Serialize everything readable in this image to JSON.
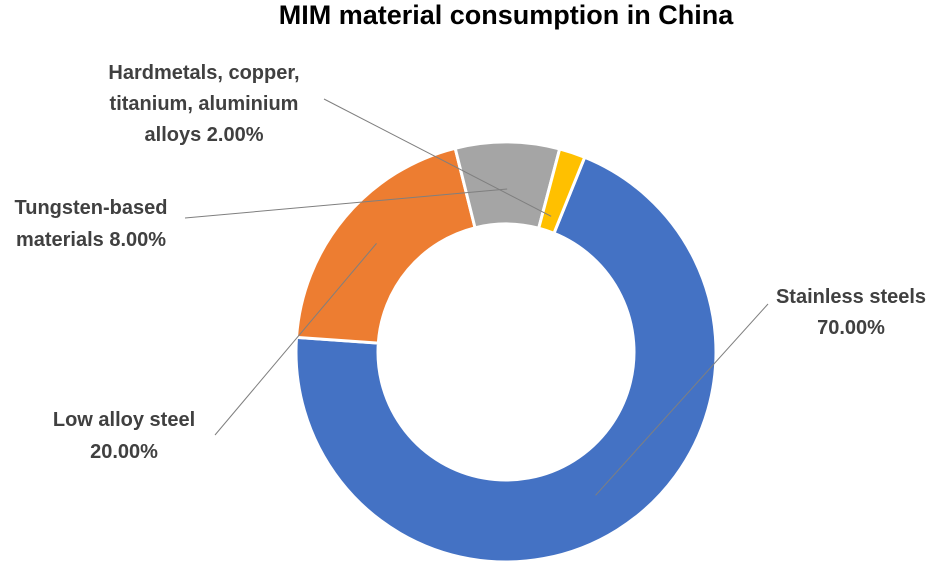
{
  "chart_data": {
    "type": "pie",
    "variant": "doughnut",
    "title": "MIM material consumption in China",
    "legend": "none",
    "slices": [
      {
        "label": "Stainless steels",
        "value": 70.0,
        "display": "70.00%",
        "color": "#4472C4"
      },
      {
        "label": "Low alloy steel",
        "value": 20.0,
        "display": "20.00%",
        "color": "#ED7D31"
      },
      {
        "label": "Tungsten-based materials",
        "value": 8.0,
        "display": "8.00%",
        "color": "#A5A5A5"
      },
      {
        "label": "Hardmetals, copper, titanium, aluminium alloys",
        "value": 2.0,
        "display": "2.00%",
        "color": "#FFC000"
      }
    ]
  }
}
